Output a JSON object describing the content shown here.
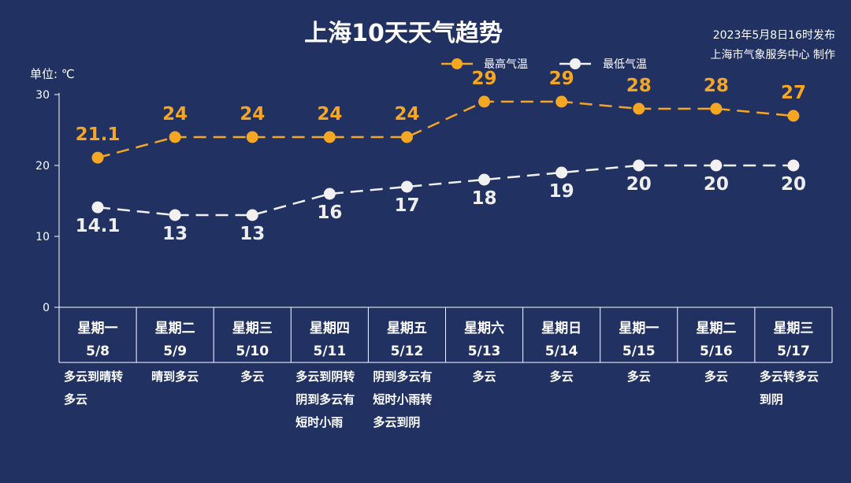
{
  "header": {
    "title": "上海10天天气趋势",
    "publish_time": "2023年5月8日16时发布",
    "producer": "上海市气象服务中心 制作"
  },
  "colors": {
    "background": "#213162",
    "high": "#f5a623",
    "low": "#f2f0f0"
  },
  "chart_data": {
    "type": "line",
    "title": "上海10天天气趋势",
    "unit_label": "单位: ℃",
    "ylim": [
      0,
      30
    ],
    "yticks": [
      0,
      10,
      20,
      30
    ],
    "grid": false,
    "legend_position": "top-right",
    "categories": [
      "5/8",
      "5/9",
      "5/10",
      "5/11",
      "5/12",
      "5/13",
      "5/14",
      "5/15",
      "5/16",
      "5/17"
    ],
    "weekdays": [
      "星期一",
      "星期二",
      "星期三",
      "星期四",
      "星期五",
      "星期六",
      "星期日",
      "星期一",
      "星期二",
      "星期三"
    ],
    "weather": [
      [
        "多云到晴转",
        "多云"
      ],
      [
        "晴到多云"
      ],
      [
        "多云"
      ],
      [
        "多云到阴转",
        "阴到多云有",
        "短时小雨"
      ],
      [
        "阴到多云有",
        "短时小雨转",
        "多云到阴"
      ],
      [
        "多云"
      ],
      [
        "多云"
      ],
      [
        "多云"
      ],
      [
        "多云"
      ],
      [
        "多云转多云",
        "到阴"
      ]
    ],
    "series": [
      {
        "name": "最高气温",
        "values": [
          21.1,
          24,
          24,
          24,
          24,
          29,
          29,
          28,
          28,
          27
        ],
        "labels": [
          "21.1",
          "24",
          "24",
          "24",
          "24",
          "29",
          "29",
          "28",
          "28",
          "27"
        ]
      },
      {
        "name": "最低气温",
        "values": [
          14.1,
          13,
          13,
          16,
          17,
          18,
          19,
          20,
          20,
          20
        ],
        "labels": [
          "14.1",
          "13",
          "13",
          "16",
          "17",
          "18",
          "19",
          "20",
          "20",
          "20"
        ]
      }
    ]
  }
}
